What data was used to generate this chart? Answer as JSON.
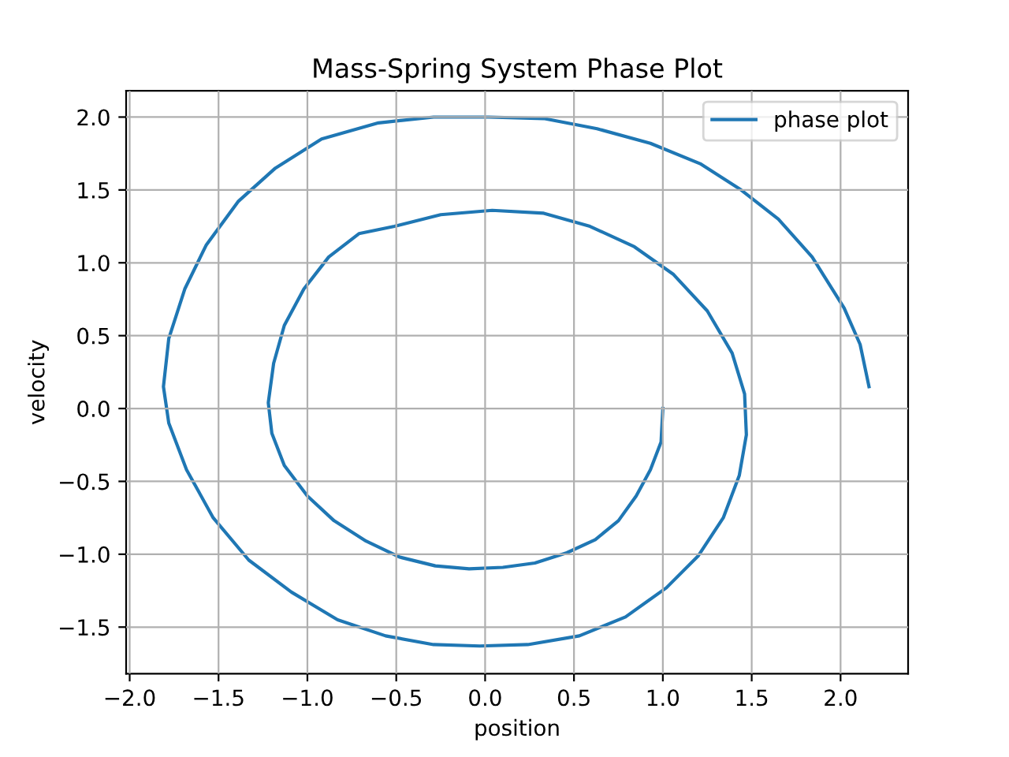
{
  "chart_data": {
    "type": "line",
    "title": "Mass-Spring System Phase Plot",
    "xlabel": "position",
    "ylabel": "velocity",
    "series": [
      {
        "name": "phase plot",
        "color": "#1f77b4",
        "x": [
          1.0,
          0.99,
          0.93,
          0.85,
          0.75,
          0.62,
          0.46,
          0.28,
          0.1,
          -0.09,
          -0.28,
          -0.48,
          -0.67,
          -0.85,
          -1.0,
          -1.13,
          -1.2,
          -1.22,
          -1.19,
          -1.13,
          -1.02,
          -0.88,
          -0.71,
          -0.51,
          -0.25,
          0.04,
          0.33,
          0.59,
          0.84,
          1.06,
          1.25,
          1.39,
          1.46,
          1.47,
          1.43,
          1.34,
          1.2,
          1.02,
          0.79,
          0.53,
          0.24,
          -0.03,
          -0.29,
          -0.56,
          -0.83,
          -1.09,
          -1.33,
          -1.53,
          -1.68,
          -1.78,
          -1.81,
          -1.78,
          -1.69,
          -1.57,
          -1.39,
          -1.18,
          -0.92,
          -0.6,
          -0.29,
          0.02,
          0.33,
          0.63,
          0.93,
          1.21,
          1.44,
          1.65,
          1.84,
          2.02,
          2.11,
          2.16
        ],
        "values": [
          0.0,
          -0.23,
          -0.42,
          -0.6,
          -0.77,
          -0.9,
          -0.99,
          -1.06,
          -1.09,
          -1.1,
          -1.08,
          -1.02,
          -0.91,
          -0.77,
          -0.6,
          -0.39,
          -0.17,
          0.04,
          0.31,
          0.57,
          0.82,
          1.04,
          1.2,
          1.25,
          1.33,
          1.36,
          1.34,
          1.25,
          1.11,
          0.92,
          0.67,
          0.38,
          0.1,
          -0.18,
          -0.46,
          -0.75,
          -1.01,
          -1.23,
          -1.43,
          -1.56,
          -1.62,
          -1.63,
          -1.62,
          -1.56,
          -1.45,
          -1.26,
          -1.04,
          -0.75,
          -0.42,
          -0.1,
          0.15,
          0.48,
          0.82,
          1.12,
          1.42,
          1.65,
          1.85,
          1.96,
          2.0,
          2.0,
          1.99,
          1.92,
          1.82,
          1.68,
          1.5,
          1.3,
          1.04,
          0.69,
          0.44,
          0.15
        ]
      }
    ],
    "xlim": [
      -2.02,
      2.38
    ],
    "ylim": [
      -1.82,
      2.18
    ],
    "xticks": [
      {
        "value": -2.0,
        "label": "−2.0"
      },
      {
        "value": -1.5,
        "label": "−1.5"
      },
      {
        "value": -1.0,
        "label": "−1.0"
      },
      {
        "value": -0.5,
        "label": "−0.5"
      },
      {
        "value": 0,
        "label": "0.0"
      },
      0.5,
      {
        "value": 1,
        "label": "1.0"
      },
      1.5,
      {
        "value": 2,
        "label": "2.0"
      }
    ],
    "yticks": [
      {
        "value": -1.5,
        "label": "−1.5"
      },
      {
        "value": -1.0,
        "label": "−1.0"
      },
      {
        "value": -0.5,
        "label": "−0.5"
      },
      {
        "value": 0,
        "label": "0.0"
      },
      0.5,
      {
        "value": 1,
        "label": "1.0"
      },
      1.5,
      {
        "value": 2,
        "label": "2.0"
      }
    ],
    "grid": true,
    "legend": "top right",
    "marker": "none",
    "line_style": "solid"
  }
}
